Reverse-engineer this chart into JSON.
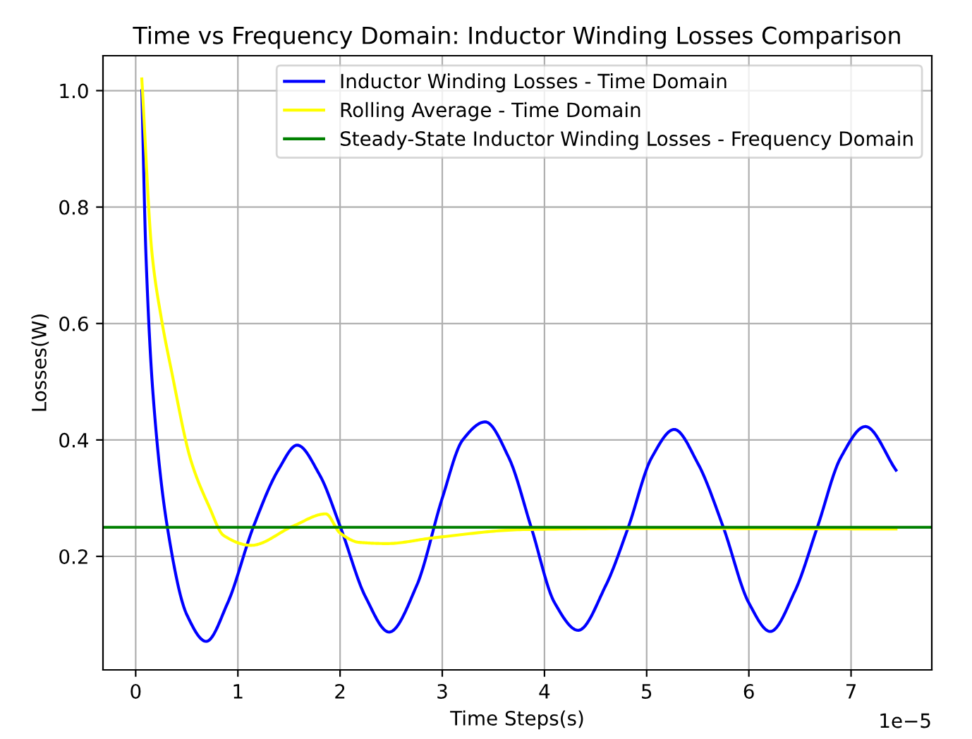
{
  "chart_data": {
    "type": "line",
    "title": "Time vs Frequency Domain: Inductor Winding Losses Comparison",
    "xlabel": "Time Steps(s)",
    "ylabel": "Losses(W)",
    "series": [
      {
        "name": "Inductor Winding Losses - Time Domain",
        "color": "#0000ff",
        "x": [
          0.06,
          0.1,
          0.17,
          0.31,
          0.5,
          0.69,
          0.9,
          1.15,
          1.4,
          1.58,
          1.8,
          2.0,
          2.25,
          2.48,
          2.75,
          3.0,
          3.2,
          3.42,
          3.65,
          3.87,
          4.1,
          4.33,
          4.6,
          4.82,
          5.05,
          5.27,
          5.5,
          5.75,
          6.0,
          6.21,
          6.45,
          6.67,
          6.9,
          7.14,
          7.44
        ],
        "values": [
          1.0,
          0.72,
          0.478,
          0.25,
          0.1,
          0.054,
          0.12,
          0.25,
          0.35,
          0.391,
          0.34,
          0.252,
          0.13,
          0.07,
          0.15,
          0.3,
          0.4,
          0.431,
          0.37,
          0.25,
          0.12,
          0.073,
          0.15,
          0.25,
          0.37,
          0.418,
          0.36,
          0.25,
          0.12,
          0.071,
          0.14,
          0.25,
          0.37,
          0.423,
          0.348
        ]
      },
      {
        "name": "Rolling Average - Time Domain",
        "color": "#ffff00",
        "x": [
          0.06,
          0.16,
          0.25,
          0.35,
          0.54,
          0.72,
          0.86,
          1.13,
          1.54,
          1.86,
          2.0,
          2.19,
          2.46,
          2.92,
          3.79,
          5.0,
          7.44
        ],
        "values": [
          1.02,
          0.72,
          0.61,
          0.519,
          0.365,
          0.285,
          0.236,
          0.219,
          0.252,
          0.273,
          0.24,
          0.224,
          0.222,
          0.232,
          0.246,
          0.248,
          0.247
        ]
      }
    ],
    "ref_lines": [
      {
        "axis": "y",
        "value": 0.25,
        "label": "Steady-State Inductor Winding Losses - Frequency Domain",
        "color": "#008000"
      }
    ],
    "xlim": [
      -0.32,
      7.79
    ],
    "ylim": [
      0.005,
      1.06
    ],
    "xticks": [
      0,
      1,
      2,
      3,
      4,
      5,
      6,
      7
    ],
    "yticks": [
      0.2,
      0.4,
      0.6,
      0.8,
      {
        "value": 1.0,
        "label": "1.0"
      }
    ],
    "annotations": [
      "1e−5"
    ],
    "grid": true,
    "legend": "top right"
  }
}
